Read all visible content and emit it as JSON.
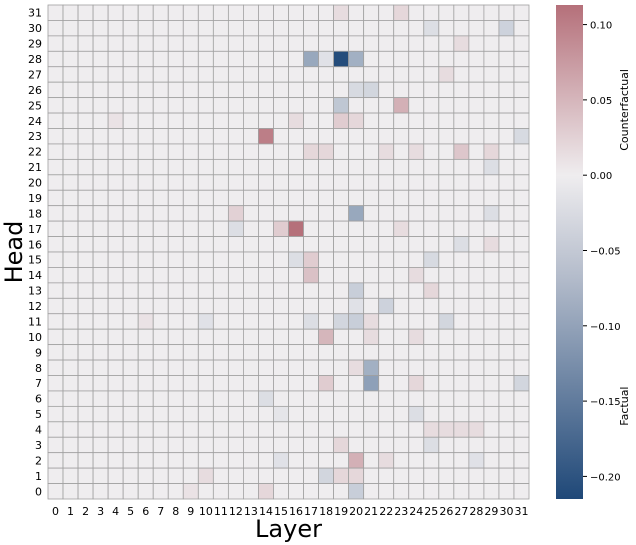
{
  "chart_data": {
    "type": "heatmap",
    "xlabel": "Layer",
    "ylabel": "Head",
    "x_ticks": [
      "0",
      "1",
      "2",
      "3",
      "4",
      "5",
      "6",
      "7",
      "8",
      "9",
      "10",
      "11",
      "12",
      "13",
      "14",
      "15",
      "16",
      "17",
      "18",
      "19",
      "20",
      "21",
      "22",
      "23",
      "24",
      "25",
      "26",
      "27",
      "28",
      "29",
      "30",
      "31"
    ],
    "y_ticks": [
      "31",
      "30",
      "29",
      "28",
      "27",
      "26",
      "25",
      "24",
      "23",
      "22",
      "21",
      "20",
      "19",
      "18",
      "17",
      "16",
      "15",
      "14",
      "13",
      "12",
      "11",
      "10",
      "9",
      "8",
      "7",
      "6",
      "5",
      "4",
      "3",
      "2",
      "1",
      "0"
    ],
    "colorbar": {
      "min": -0.215,
      "max": 0.113,
      "ticks": [
        0.1,
        0.05,
        0.0,
        -0.05,
        -0.1,
        -0.15,
        -0.2
      ],
      "tick_labels": [
        "0.10",
        "0.05",
        "0.00",
        "−0.05",
        "−0.10",
        "−0.15",
        "−0.20"
      ],
      "label_positive": "Counterfactual",
      "label_negative": "Factual"
    },
    "colors": {
      "positive_max": "#b5707a",
      "zero": "#efedef",
      "negative_max": "#1f4878",
      "gridline": "#a0a0a0"
    },
    "cells": [
      {
        "layer": 17,
        "head": 28,
        "value": -0.09
      },
      {
        "layer": 19,
        "head": 28,
        "value": -0.21
      },
      {
        "layer": 20,
        "head": 28,
        "value": -0.08
      },
      {
        "layer": 18,
        "head": 28,
        "value": -0.015
      },
      {
        "layer": 30,
        "head": 30,
        "value": -0.035
      },
      {
        "layer": 25,
        "head": 30,
        "value": -0.02
      },
      {
        "layer": 23,
        "head": 31,
        "value": 0.02
      },
      {
        "layer": 19,
        "head": 31,
        "value": 0.015
      },
      {
        "layer": 27,
        "head": 29,
        "value": 0.015
      },
      {
        "layer": 20,
        "head": 26,
        "value": -0.025
      },
      {
        "layer": 21,
        "head": 26,
        "value": -0.03
      },
      {
        "layer": 26,
        "head": 27,
        "value": 0.015
      },
      {
        "layer": 19,
        "head": 25,
        "value": -0.05
      },
      {
        "layer": 23,
        "head": 25,
        "value": 0.055
      },
      {
        "layer": 16,
        "head": 24,
        "value": 0.015
      },
      {
        "layer": 19,
        "head": 24,
        "value": 0.03
      },
      {
        "layer": 20,
        "head": 24,
        "value": 0.02
      },
      {
        "layer": 4,
        "head": 24,
        "value": 0.01
      },
      {
        "layer": 14,
        "head": 23,
        "value": 0.1
      },
      {
        "layer": 31,
        "head": 23,
        "value": -0.025
      },
      {
        "layer": 17,
        "head": 22,
        "value": 0.02
      },
      {
        "layer": 18,
        "head": 22,
        "value": 0.02
      },
      {
        "layer": 22,
        "head": 22,
        "value": 0.015
      },
      {
        "layer": 27,
        "head": 22,
        "value": 0.035
      },
      {
        "layer": 29,
        "head": 22,
        "value": 0.02
      },
      {
        "layer": 24,
        "head": 22,
        "value": 0.015
      },
      {
        "layer": 29,
        "head": 21,
        "value": -0.02
      },
      {
        "layer": 20,
        "head": 18,
        "value": -0.09
      },
      {
        "layer": 12,
        "head": 18,
        "value": 0.025
      },
      {
        "layer": 29,
        "head": 18,
        "value": -0.02
      },
      {
        "layer": 16,
        "head": 17,
        "value": 0.113
      },
      {
        "layer": 15,
        "head": 17,
        "value": 0.03
      },
      {
        "layer": 12,
        "head": 17,
        "value": -0.02
      },
      {
        "layer": 23,
        "head": 17,
        "value": 0.015
      },
      {
        "layer": 27,
        "head": 16,
        "value": -0.02
      },
      {
        "layer": 29,
        "head": 16,
        "value": 0.015
      },
      {
        "layer": 17,
        "head": 15,
        "value": 0.03
      },
      {
        "layer": 16,
        "head": 15,
        "value": -0.02
      },
      {
        "layer": 25,
        "head": 15,
        "value": -0.025
      },
      {
        "layer": 17,
        "head": 14,
        "value": 0.04
      },
      {
        "layer": 24,
        "head": 14,
        "value": 0.015
      },
      {
        "layer": 20,
        "head": 13,
        "value": -0.04
      },
      {
        "layer": 25,
        "head": 13,
        "value": 0.02
      },
      {
        "layer": 22,
        "head": 12,
        "value": -0.035
      },
      {
        "layer": 20,
        "head": 12,
        "value": -0.015
      },
      {
        "layer": 17,
        "head": 11,
        "value": -0.02
      },
      {
        "layer": 19,
        "head": 11,
        "value": -0.03
      },
      {
        "layer": 20,
        "head": 11,
        "value": -0.04
      },
      {
        "layer": 21,
        "head": 11,
        "value": 0.015
      },
      {
        "layer": 26,
        "head": 11,
        "value": -0.03
      },
      {
        "layer": 10,
        "head": 11,
        "value": -0.015
      },
      {
        "layer": 6,
        "head": 11,
        "value": 0.01
      },
      {
        "layer": 18,
        "head": 10,
        "value": 0.05
      },
      {
        "layer": 21,
        "head": 10,
        "value": 0.015
      },
      {
        "layer": 24,
        "head": 10,
        "value": 0.015
      },
      {
        "layer": 21,
        "head": 8,
        "value": -0.08
      },
      {
        "layer": 21,
        "head": 7,
        "value": -0.1
      },
      {
        "layer": 18,
        "head": 7,
        "value": 0.03
      },
      {
        "layer": 24,
        "head": 7,
        "value": 0.02
      },
      {
        "layer": 31,
        "head": 7,
        "value": -0.03
      },
      {
        "layer": 20,
        "head": 8,
        "value": 0.015
      },
      {
        "layer": 14,
        "head": 6,
        "value": -0.02
      },
      {
        "layer": 24,
        "head": 5,
        "value": -0.02
      },
      {
        "layer": 15,
        "head": 5,
        "value": -0.01
      },
      {
        "layer": 25,
        "head": 4,
        "value": 0.015
      },
      {
        "layer": 26,
        "head": 4,
        "value": 0.015
      },
      {
        "layer": 27,
        "head": 4,
        "value": 0.015
      },
      {
        "layer": 28,
        "head": 4,
        "value": 0.015
      },
      {
        "layer": 25,
        "head": 3,
        "value": -0.02
      },
      {
        "layer": 19,
        "head": 3,
        "value": 0.02
      },
      {
        "layer": 20,
        "head": 2,
        "value": 0.055
      },
      {
        "layer": 22,
        "head": 2,
        "value": 0.015
      },
      {
        "layer": 15,
        "head": 2,
        "value": -0.015
      },
      {
        "layer": 28,
        "head": 2,
        "value": -0.015
      },
      {
        "layer": 18,
        "head": 1,
        "value": -0.03
      },
      {
        "layer": 19,
        "head": 1,
        "value": 0.02
      },
      {
        "layer": 20,
        "head": 1,
        "value": 0.02
      },
      {
        "layer": 10,
        "head": 1,
        "value": 0.015
      },
      {
        "layer": 20,
        "head": 0,
        "value": -0.04
      },
      {
        "layer": 14,
        "head": 0,
        "value": 0.02
      },
      {
        "layer": 9,
        "head": 0,
        "value": 0.01
      }
    ]
  }
}
